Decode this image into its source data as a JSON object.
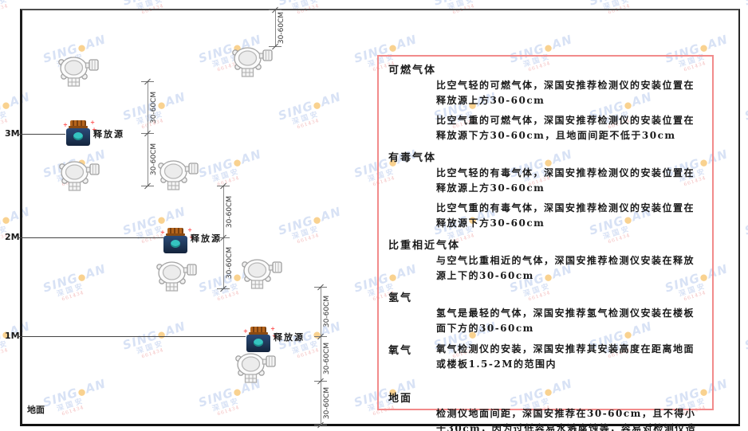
{
  "watermark": {
    "brand_left": "SING",
    "brand_right": "AN",
    "brand_sub": "深国安",
    "brand_code": "661434"
  },
  "diagram": {
    "height_labels": [
      "3M",
      "2M",
      "1M"
    ],
    "ground_label": "地面",
    "release_source_label": "释放源",
    "dim_label": "30-60CM"
  },
  "panel": {
    "sections": [
      {
        "heading": "可燃气体",
        "paras": [
          "比空气轻的可燃气体，深国安推荐检测仪的安装位置在释放源上方30-60cm",
          "比空气重的可燃气体，深国安推荐检测仪的安装位置在释放源下方30-60cm，且地面间距不低于30cm"
        ]
      },
      {
        "heading": "有毒气体",
        "paras": [
          "比空气轻的有毒气体，深国安推荐检测仪的安装位置在释放源上方30-60cm",
          "比空气重的有毒气体，深国安推荐检测仪的安装位置在释放源下方30-60cm"
        ]
      },
      {
        "heading": "比重相近气体",
        "paras": [
          "与空气比重相近的气体，深国安推荐检测仪安装在释放源上下的30-60cm"
        ]
      },
      {
        "heading": "氢气",
        "paras": [
          "氢气是最轻的气体，深国安推荐氢气检测仪安装在楼板面下方的30-60cm"
        ]
      },
      {
        "heading": "氧气",
        "paras": [
          "氧气检测仪的安装，深国安推荐其安装高度在距离地面或楼板1.5-2M的范围内"
        ]
      },
      {
        "heading": "地面",
        "paras": [
          "检测仪地面间距，深国安推荐在30-60cm，且不得小于30cm，因为过低容易水溅腐蚀等，容易对检测仪造成伤害"
        ]
      }
    ]
  },
  "colors": {
    "panel_border": "#f28b8b",
    "watermark_blue": "#b3c6ec",
    "watermark_red": "#e87878",
    "dot_orange": "#f5a623",
    "frame_dark": "#1c1c1c",
    "dim_gray": "#8a8a8a",
    "jar_navy": "#1f3757",
    "jar_teal": "#35c4c0",
    "cap_brown": "#b5651d",
    "sparkle_red": "#ff4d4d"
  }
}
